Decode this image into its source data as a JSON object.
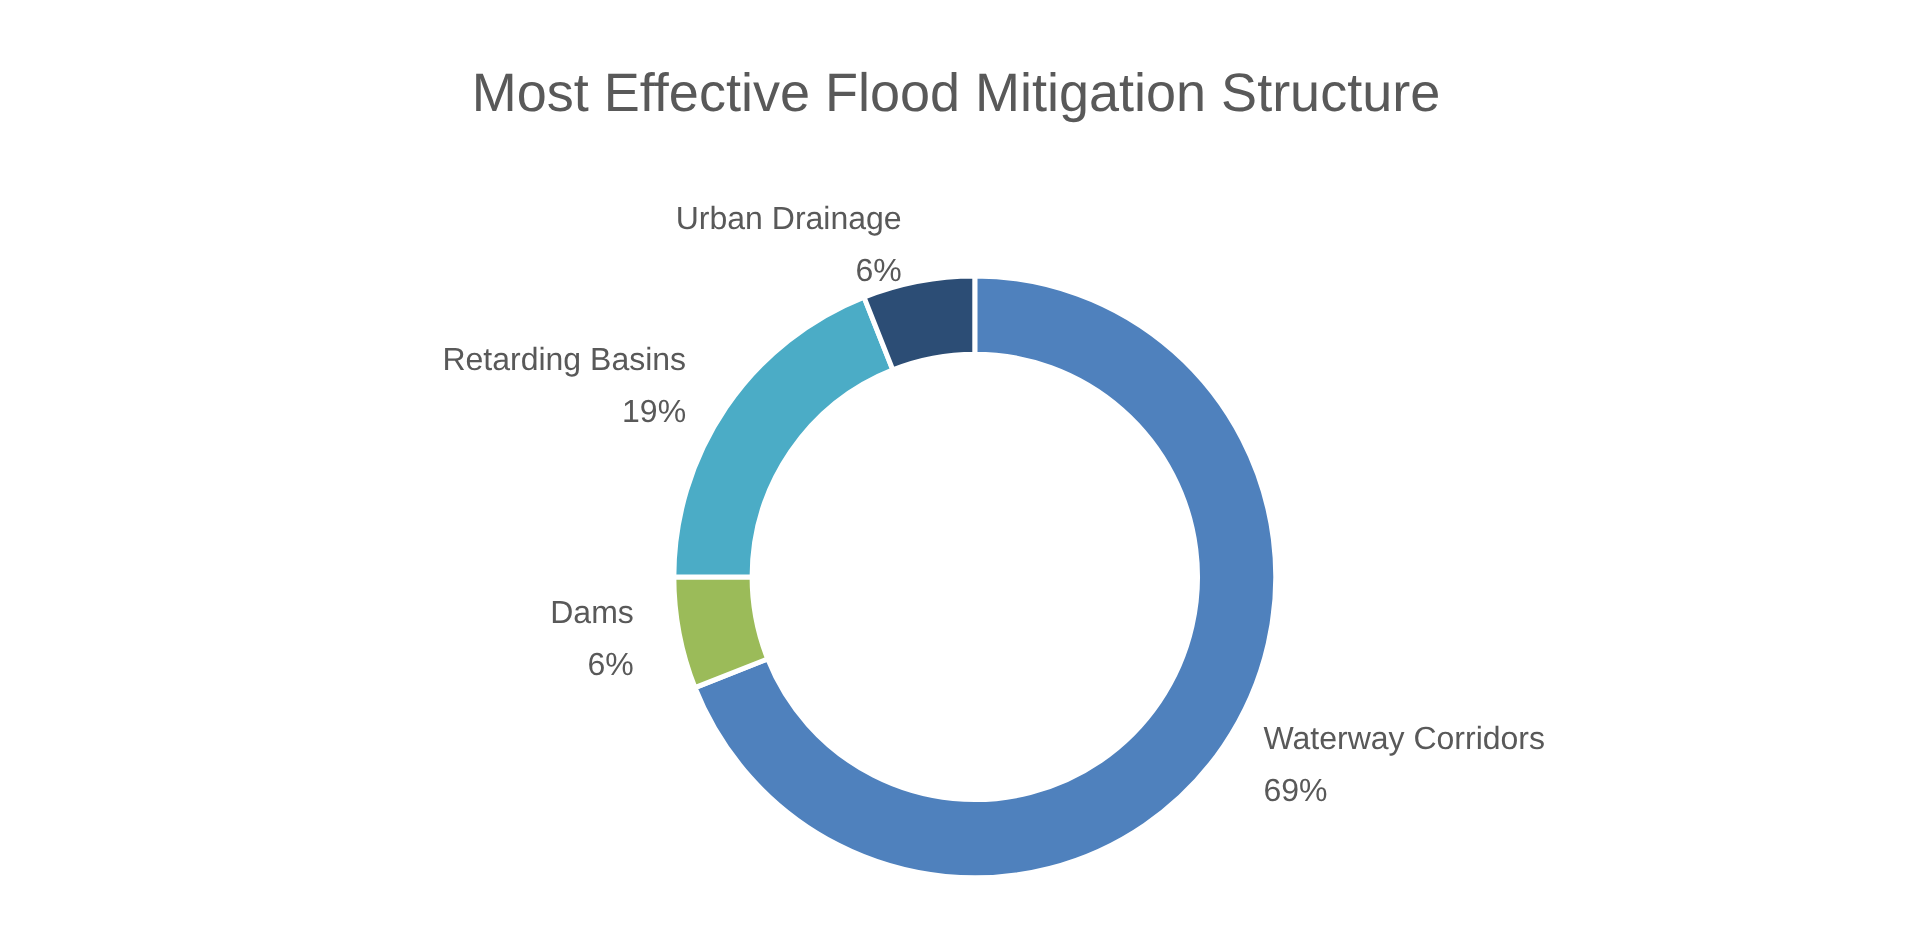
{
  "chart_data": {
    "type": "donut",
    "title": "Most Effective Flood Mitigation Structure",
    "categories": [
      "Waterway Corridors",
      "Dams",
      "Retarding Basins",
      "Urban Drainage"
    ],
    "values": [
      69,
      6,
      19,
      6
    ],
    "colors": [
      "#4f81bd",
      "#9bbb59",
      "#4bacc6",
      "#2c4d75"
    ],
    "value_labels": [
      "69%",
      "6%",
      "19%",
      "6%"
    ],
    "legend": false
  }
}
